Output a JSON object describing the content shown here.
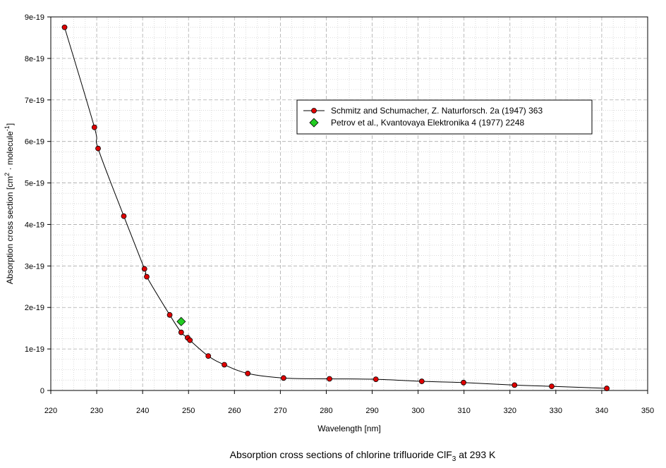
{
  "chart_data": {
    "type": "scatter",
    "title": "",
    "xlabel": "Wavelength [nm]",
    "ylabel": "Absorption cross section [cm² · molecule⁻¹]",
    "xlim": [
      220,
      350
    ],
    "ylim": [
      0,
      9e-19
    ],
    "xticks": [
      "220",
      "230",
      "240",
      "250",
      "260",
      "270",
      "280",
      "290",
      "300",
      "310",
      "320",
      "330",
      "340",
      "350"
    ],
    "yticks": [
      "0",
      "1e-19",
      "2e-19",
      "3e-19",
      "4e-19",
      "5e-19",
      "6e-19",
      "7e-19",
      "8e-19",
      "9e-19"
    ],
    "grid": true,
    "legend_position": "top-right",
    "series": [
      {
        "name": "Schmitz and Schumacher, Z. Naturforsch. 2a (1947) 363",
        "marker": "circle",
        "color": "#e00000",
        "connected": true,
        "points": [
          [
            223.0,
            8.75e-19
          ],
          [
            229.5,
            6.34e-19
          ],
          [
            230.3,
            5.83e-19
          ],
          [
            235.9,
            4.2e-19
          ],
          [
            240.4,
            2.93e-19
          ],
          [
            240.9,
            2.74e-19
          ],
          [
            245.9,
            1.82e-19
          ],
          [
            248.4,
            1.4e-19
          ],
          [
            249.8,
            1.27e-19
          ],
          [
            250.3,
            1.21e-19
          ],
          [
            254.3,
            8.3e-20
          ],
          [
            257.8,
            6.2e-20
          ],
          [
            262.9,
            4.1e-20
          ],
          [
            270.7,
            3e-20
          ],
          [
            280.7,
            2.8e-20
          ],
          [
            290.8,
            2.7e-20
          ],
          [
            300.8,
            2.2e-20
          ],
          [
            309.9,
            1.9e-20
          ],
          [
            321.0,
            1.3e-20
          ],
          [
            329.1,
            1e-20
          ],
          [
            341.1,
            5e-21
          ]
        ]
      },
      {
        "name": "Petrov et al., Kvantovaya Elektronika 4 (1977) 2248",
        "marker": "diamond",
        "color": "#22cc22",
        "connected": false,
        "points": [
          [
            248.4,
            1.66e-19
          ]
        ]
      }
    ]
  },
  "caption": {
    "prefix": "Absorption cross sections of chlorine trifluoride ClF",
    "subscript": "3",
    "suffix": " at 293 K"
  },
  "ylabel_parts": {
    "main": "Absorption cross section [cm",
    "sup1": "2",
    "mid": " · molecule",
    "sup2": "-1",
    "end": "]"
  },
  "colors": {
    "plot_bg": "#ffffff",
    "grid_major": "#aaaaaa",
    "grid_minor": "#cccccc",
    "line": "#000000"
  }
}
